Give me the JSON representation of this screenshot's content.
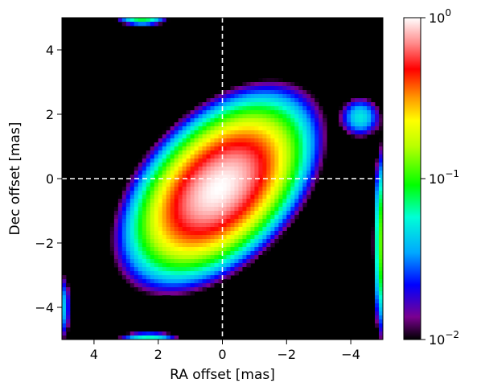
{
  "chart_data": {
    "type": "heatmap",
    "title": "",
    "xlabel": "RA offset [mas]",
    "ylabel": "Dec offset [mas]",
    "xlim": [
      5,
      -5
    ],
    "ylim": [
      -5,
      5
    ],
    "xticks": [
      4,
      2,
      0,
      -2,
      -4
    ],
    "yticks": [
      -4,
      -2,
      0,
      2,
      4
    ],
    "xtick_labels": [
      "4",
      "2",
      "0",
      "−2",
      "−4"
    ],
    "ytick_labels": [
      "−4",
      "−2",
      "0",
      "2",
      "4"
    ],
    "crosshair": {
      "x": 0,
      "y": 0,
      "style": "dashed",
      "color": "#ffffff"
    },
    "background_color": "#000000",
    "colorbar": {
      "scale": "log",
      "range": [
        0.01,
        1
      ],
      "ticks": [
        {
          "value": 1,
          "base": "10",
          "exp": "0"
        },
        {
          "value": 0.1,
          "base": "10",
          "exp": "−1"
        },
        {
          "value": 0.01,
          "base": "10",
          "exp": "−2"
        }
      ],
      "colormap": [
        {
          "pos": 0.0,
          "color": "#000000"
        },
        {
          "pos": 0.07,
          "color": "#7a0090"
        },
        {
          "pos": 0.17,
          "color": "#0000ff"
        },
        {
          "pos": 0.27,
          "color": "#00a8ff"
        },
        {
          "pos": 0.38,
          "color": "#00ffd6"
        },
        {
          "pos": 0.48,
          "color": "#00ff00"
        },
        {
          "pos": 0.6,
          "color": "#b8ff00"
        },
        {
          "pos": 0.68,
          "color": "#ffff00"
        },
        {
          "pos": 0.75,
          "color": "#ff9a00"
        },
        {
          "pos": 0.84,
          "color": "#ff0000"
        },
        {
          "pos": 0.92,
          "color": "#ff8a8a"
        },
        {
          "pos": 1.0,
          "color": "#ffffff"
        }
      ]
    },
    "image_grid": {
      "nx": 80,
      "ny": 80
    },
    "main_component": {
      "peak": 1.0,
      "center": [
        0.1,
        -0.3
      ],
      "major_fwhm": 3.2,
      "minor_fwhm": 1.9,
      "major_axis_pa_deg": 45,
      "cutoff": 0.01
    },
    "secondary_features": [
      {
        "name": "blob-east",
        "x": -4.3,
        "y": 1.9,
        "peak": 0.05,
        "size": 0.35
      },
      {
        "name": "edge-left",
        "x": 4.95,
        "y": -4.0,
        "peak": 0.04,
        "size": 0.6
      },
      {
        "name": "edge-right",
        "x": -4.95,
        "y": -2.0,
        "peak": 0.12,
        "size": 1.4
      },
      {
        "name": "edge-top",
        "x": 2.5,
        "y": 4.95,
        "peak": 0.08,
        "size": 0.4
      },
      {
        "name": "edge-bottom",
        "x": 2.3,
        "y": -4.95,
        "peak": 0.06,
        "size": 0.5
      }
    ]
  }
}
